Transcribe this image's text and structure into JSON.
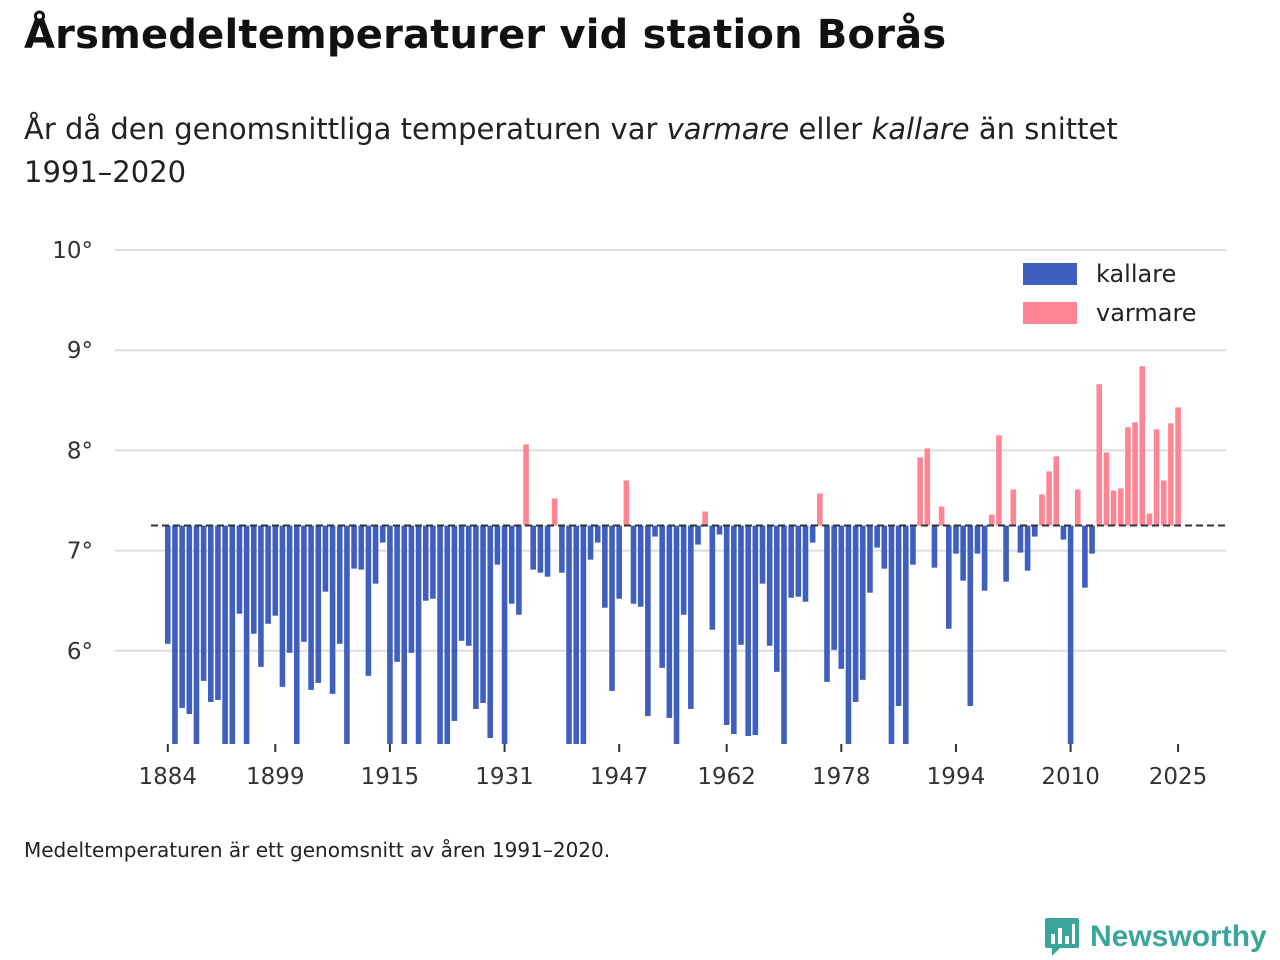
{
  "title": "Årsmedeltemperaturer vid station Borås",
  "subtitle": {
    "part1": "År då den genomsnittliga temperaturen var ",
    "warm_word": "varmare",
    "part2": " eller ",
    "cold_word": "kallare",
    "part3": " än snittet 1991–2020"
  },
  "footnote": "Medeltemperaturen är ett genomsnitt av åren 1991–2020.",
  "brand": "Newsworthy",
  "colors": {
    "cold": "#3f5fbf",
    "warm": "#ff8595",
    "baseline": "#333333",
    "grid": "#dddddd",
    "brand": "#3aa59a"
  },
  "chart_data": {
    "type": "bar",
    "title": "Årsmedeltemperaturer vid station Borås",
    "baseline": 7.25,
    "baseline_label": "snittet 1991–2020",
    "ylim": [
      5.07,
      10.0
    ],
    "yticks": [
      6,
      7,
      8,
      9,
      10
    ],
    "ytick_labels": [
      "6°",
      "7°",
      "8°",
      "9°",
      "10°"
    ],
    "xticks": [
      1884,
      1899,
      1915,
      1931,
      1947,
      1962,
      1978,
      1994,
      2010,
      2025
    ],
    "xtick_labels": [
      "1884",
      "1899",
      "1915",
      "1931",
      "1947",
      "1962",
      "1978",
      "1994",
      "2010",
      "2025"
    ],
    "legend": [
      {
        "key": "cold",
        "label": "kallare"
      },
      {
        "key": "warm",
        "label": "varmare"
      }
    ],
    "legend_position": "top-right",
    "first_year": 1884,
    "last_year": 2025,
    "values": [
      6.07,
      5.07,
      5.43,
      5.37,
      5.07,
      5.7,
      5.49,
      5.51,
      5.07,
      5.07,
      6.37,
      5.07,
      6.17,
      5.84,
      6.27,
      6.35,
      5.64,
      5.98,
      5.07,
      6.09,
      5.61,
      5.68,
      6.59,
      5.57,
      6.07,
      5.07,
      6.82,
      6.81,
      5.75,
      6.67,
      7.08,
      5.07,
      5.89,
      5.07,
      5.98,
      5.07,
      6.5,
      6.52,
      5.07,
      5.07,
      5.3,
      6.1,
      6.05,
      5.42,
      5.48,
      5.13,
      6.86,
      5.07,
      6.47,
      6.36,
      8.06,
      6.81,
      6.78,
      6.74,
      7.52,
      6.78,
      5.07,
      5.07,
      5.07,
      6.91,
      7.08,
      6.43,
      5.6,
      6.52,
      7.7,
      6.47,
      6.44,
      5.35,
      7.14,
      5.83,
      5.33,
      5.07,
      6.36,
      5.42,
      7.06,
      7.39,
      6.21,
      7.16,
      5.26,
      5.17,
      6.06,
      5.15,
      5.16,
      6.67,
      6.05,
      5.79,
      5.07,
      6.53,
      6.54,
      6.49,
      7.08,
      7.57,
      5.69,
      6.01,
      5.82,
      5.07,
      5.49,
      5.71,
      6.58,
      7.03,
      6.82,
      5.07,
      5.45,
      5.07,
      6.86,
      7.93,
      8.02,
      6.83,
      7.44,
      6.22,
      6.97,
      6.7,
      5.45,
      6.97,
      6.6,
      7.36,
      8.15,
      6.69,
      7.61,
      6.98,
      6.8,
      7.14,
      7.56,
      7.79,
      7.94,
      7.11,
      5.07,
      7.61,
      6.63,
      6.97,
      8.66,
      7.98,
      7.6,
      7.62,
      8.23,
      8.28,
      8.84,
      7.37,
      8.21,
      7.7,
      8.27,
      8.43
    ]
  }
}
